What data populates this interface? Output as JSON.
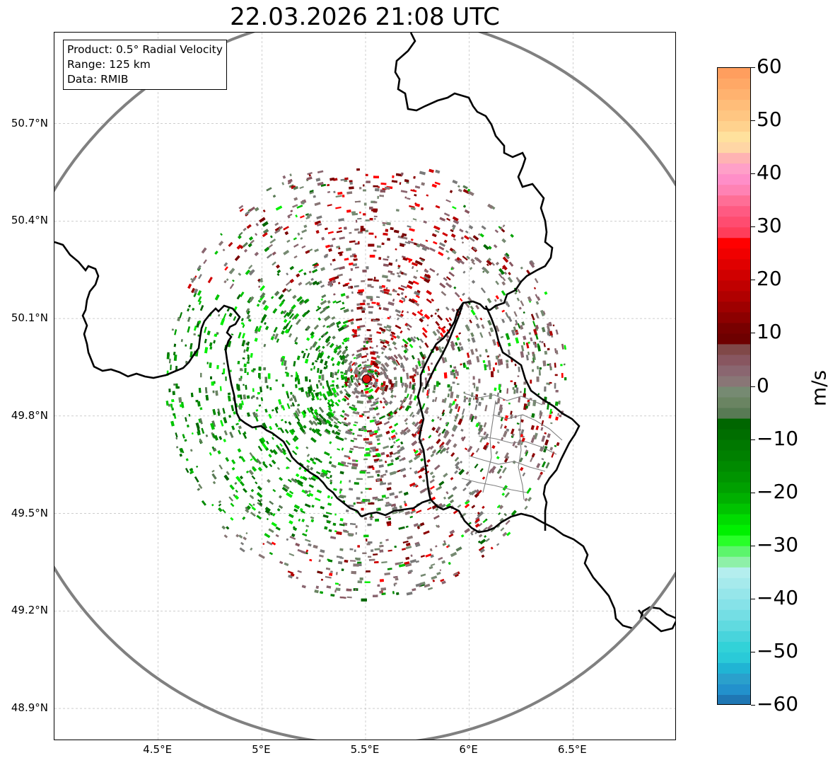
{
  "title": "22.03.2026 21:08 UTC",
  "info": {
    "product": "Product: 0.5° Radial Velocity",
    "range": "Range: 125 km",
    "source": "Data: RMIB"
  },
  "map": {
    "lon_range": [
      4.0,
      7.0
    ],
    "lat_range": [
      48.8,
      50.98
    ],
    "radar_site": {
      "lon": 5.505,
      "lat": 49.914
    },
    "range_km": 125,
    "lat_ticks": [
      {
        "value": 50.7,
        "label": "50.7°N"
      },
      {
        "value": 50.4,
        "label": "50.4°N"
      },
      {
        "value": 50.1,
        "label": "50.1°N"
      },
      {
        "value": 49.8,
        "label": "49.8°N"
      },
      {
        "value": 49.5,
        "label": "49.5°N"
      },
      {
        "value": 49.2,
        "label": "49.2°N"
      },
      {
        "value": 48.9,
        "label": "48.9°N"
      }
    ],
    "lon_ticks": [
      {
        "value": 4.5,
        "label": "4.5°E"
      },
      {
        "value": 5.0,
        "label": "5°E"
      },
      {
        "value": 5.5,
        "label": "5.5°E"
      },
      {
        "value": 6.0,
        "label": "6°E"
      },
      {
        "value": 6.5,
        "label": "6.5°E"
      }
    ]
  },
  "colorbar": {
    "unit": "m/s",
    "min": -60,
    "max": 60,
    "ticks": [
      {
        "value": 60,
        "label": "60"
      },
      {
        "value": 50,
        "label": "50"
      },
      {
        "value": 40,
        "label": "40"
      },
      {
        "value": 30,
        "label": "30"
      },
      {
        "value": 20,
        "label": "20"
      },
      {
        "value": 10,
        "label": "10"
      },
      {
        "value": 0,
        "label": "0"
      },
      {
        "value": -10,
        "label": "−10"
      },
      {
        "value": -20,
        "label": "−20"
      },
      {
        "value": -30,
        "label": "−30"
      },
      {
        "value": -40,
        "label": "−40"
      },
      {
        "value": -50,
        "label": "−50"
      },
      {
        "value": -60,
        "label": "−60"
      }
    ],
    "bands": [
      {
        "from": 58,
        "to": 60,
        "color": "#ff9e5e"
      },
      {
        "from": 56,
        "to": 58,
        "color": "#ffa866"
      },
      {
        "from": 54,
        "to": 56,
        "color": "#ffb26f"
      },
      {
        "from": 52,
        "to": 54,
        "color": "#ffbd79"
      },
      {
        "from": 50,
        "to": 52,
        "color": "#ffc682"
      },
      {
        "from": 48,
        "to": 50,
        "color": "#ffd28e"
      },
      {
        "from": 46,
        "to": 48,
        "color": "#ffe19d"
      },
      {
        "from": 44,
        "to": 46,
        "color": "#ffd6a5"
      },
      {
        "from": 42,
        "to": 44,
        "color": "#ffb3b3"
      },
      {
        "from": 40,
        "to": 42,
        "color": "#ffa0c8"
      },
      {
        "from": 38,
        "to": 40,
        "color": "#ff8ec8"
      },
      {
        "from": 36,
        "to": 38,
        "color": "#ff82b4"
      },
      {
        "from": 34,
        "to": 36,
        "color": "#ff6e96"
      },
      {
        "from": 32,
        "to": 34,
        "color": "#ff5a82"
      },
      {
        "from": 30,
        "to": 32,
        "color": "#ff4c70"
      },
      {
        "from": 28,
        "to": 30,
        "color": "#ff3d5a"
      },
      {
        "from": 26,
        "to": 28,
        "color": "#ff0000"
      },
      {
        "from": 24,
        "to": 26,
        "color": "#f00000"
      },
      {
        "from": 22,
        "to": 24,
        "color": "#e00000"
      },
      {
        "from": 20,
        "to": 22,
        "color": "#d00000"
      },
      {
        "from": 18,
        "to": 20,
        "color": "#c00000"
      },
      {
        "from": 16,
        "to": 18,
        "color": "#b00000"
      },
      {
        "from": 14,
        "to": 16,
        "color": "#9e0000"
      },
      {
        "from": 12,
        "to": 14,
        "color": "#8c0000"
      },
      {
        "from": 10,
        "to": 12,
        "color": "#780000"
      },
      {
        "from": 8,
        "to": 10,
        "color": "#6e0000"
      },
      {
        "from": 6,
        "to": 8,
        "color": "#804848"
      },
      {
        "from": 4,
        "to": 6,
        "color": "#885660"
      },
      {
        "from": 2,
        "to": 4,
        "color": "#8a6670"
      },
      {
        "from": 0,
        "to": 2,
        "color": "#897676"
      },
      {
        "from": -2,
        "to": 0,
        "color": "#768a72"
      },
      {
        "from": -4,
        "to": -2,
        "color": "#6a8462"
      },
      {
        "from": -6,
        "to": -4,
        "color": "#587a54"
      },
      {
        "from": -8,
        "to": -6,
        "color": "#006600"
      },
      {
        "from": -10,
        "to": -8,
        "color": "#006e00"
      },
      {
        "from": -12,
        "to": -10,
        "color": "#007800"
      },
      {
        "from": -14,
        "to": -12,
        "color": "#008000"
      },
      {
        "from": -16,
        "to": -14,
        "color": "#008a00"
      },
      {
        "from": -18,
        "to": -16,
        "color": "#009400"
      },
      {
        "from": -20,
        "to": -18,
        "color": "#00a000"
      },
      {
        "from": -22,
        "to": -20,
        "color": "#00b000"
      },
      {
        "from": -24,
        "to": -22,
        "color": "#00c400"
      },
      {
        "from": -26,
        "to": -24,
        "color": "#00dc00"
      },
      {
        "from": -28,
        "to": -26,
        "color": "#00f000"
      },
      {
        "from": -30,
        "to": -28,
        "color": "#28ff28"
      },
      {
        "from": -32,
        "to": -30,
        "color": "#5cf56c"
      },
      {
        "from": -34,
        "to": -32,
        "color": "#8ef0a8"
      },
      {
        "from": -36,
        "to": -34,
        "color": "#b4eeee"
      },
      {
        "from": -38,
        "to": -36,
        "color": "#a6eaec"
      },
      {
        "from": -40,
        "to": -38,
        "color": "#96e6ea"
      },
      {
        "from": -42,
        "to": -40,
        "color": "#86e2e8"
      },
      {
        "from": -44,
        "to": -42,
        "color": "#74dee4"
      },
      {
        "from": -46,
        "to": -44,
        "color": "#60dae0"
      },
      {
        "from": -48,
        "to": -46,
        "color": "#48d4dc"
      },
      {
        "from": -50,
        "to": -48,
        "color": "#32d2d8"
      },
      {
        "from": -52,
        "to": -50,
        "color": "#2acad8"
      },
      {
        "from": -54,
        "to": -52,
        "color": "#20b4d4"
      },
      {
        "from": -56,
        "to": -54,
        "color": "#2aa0cc"
      },
      {
        "from": -58,
        "to": -56,
        "color": "#2291cc"
      },
      {
        "from": -60,
        "to": -58,
        "color": "#1f77b4"
      }
    ]
  },
  "colors": {
    "range_ring": "#808080",
    "border": "#000000",
    "admin": "#808080",
    "grid": "#b0b0b0",
    "radar_marker": "#dd1111"
  }
}
